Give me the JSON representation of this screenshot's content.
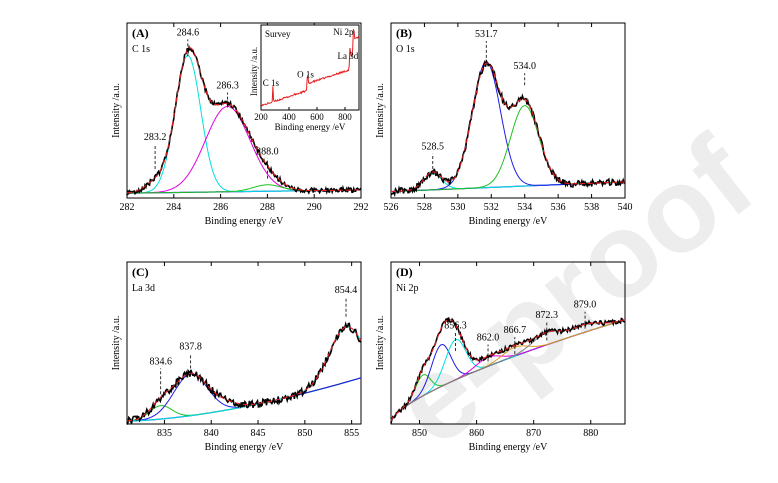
{
  "watermark": "e-proof",
  "chart_data": [
    {
      "id": "A",
      "type": "line",
      "panel_label": "(A)",
      "element_label": "C 1s",
      "xlabel": "Binding energy /eV",
      "ylabel": "Intensity /a.u.",
      "xlim": [
        282,
        292
      ],
      "xticks": [
        282,
        284,
        286,
        288,
        290,
        292
      ],
      "xreverse": false,
      "ylim": [
        0,
        1
      ],
      "peaks": [
        {
          "label": "283.2",
          "x": 283.2,
          "y": 0.18,
          "ly": 0.36
        },
        {
          "label": "284.6",
          "x": 284.6,
          "y": 0.88,
          "ly": 1.01
        },
        {
          "label": "286.3",
          "x": 286.3,
          "y": 0.58,
          "ly": 0.68
        },
        {
          "label": "288.0",
          "x": 288.0,
          "y": 0.12,
          "ly": 0.27
        }
      ],
      "background": [
        [
          282,
          0.03
        ],
        [
          292,
          0.05
        ]
      ],
      "components": [
        {
          "color": "#e61e1e",
          "peaks": []
        },
        {
          "color": "#00e0e0",
          "peaks": [
            [
              284.6,
              0.85,
              0.55
            ]
          ]
        },
        {
          "color": "#e000e0",
          "peaks": [
            [
              286.3,
              0.53,
              0.95
            ]
          ]
        },
        {
          "color": "#20c020",
          "peaks": [
            [
              288.0,
              0.04,
              0.6
            ]
          ]
        }
      ],
      "envelope_peaks": [
        [
          283.2,
          0.06,
          0.45
        ],
        [
          284.6,
          0.78,
          0.55
        ],
        [
          286.3,
          0.54,
          0.95
        ],
        [
          288.0,
          0.05,
          0.6
        ]
      ],
      "noise": 0.015,
      "inset": {
        "title": "Survey",
        "xlabel": "Binding energy /eV",
        "ylabel": "Intensity /a.u.",
        "xlim": [
          200,
          900
        ],
        "xticks": [
          200,
          400,
          600,
          800
        ],
        "labels": [
          {
            "label": "C 1s",
            "x": 285,
            "y": 0.28
          },
          {
            "label": "O 1s",
            "x": 532,
            "y": 0.38
          },
          {
            "label": "La 3d",
            "x": 835,
            "y": 0.6
          },
          {
            "label": "Ni 2p",
            "x": 860,
            "y": 0.88
          }
        ]
      }
    },
    {
      "id": "B",
      "type": "line",
      "panel_label": "(B)",
      "element_label": "O 1s",
      "xlabel": "Binding energy /eV",
      "ylabel": "Intensity /a.u.",
      "xlim": [
        526,
        540
      ],
      "xticks": [
        526,
        528,
        530,
        532,
        534,
        536,
        538,
        540
      ],
      "xreverse": false,
      "ylim": [
        0,
        1
      ],
      "peaks": [
        {
          "label": "528.5",
          "x": 528.5,
          "y": 0.18,
          "ly": 0.3
        },
        {
          "label": "531.7",
          "x": 531.7,
          "y": 0.87,
          "ly": 1.0
        },
        {
          "label": "534.0",
          "x": 534.0,
          "y": 0.7,
          "ly": 0.8
        }
      ],
      "background": [
        [
          526,
          0.04
        ],
        [
          540,
          0.1
        ]
      ],
      "components": [
        {
          "color": "#00e0e0",
          "peaks": [
            [
              528.5,
              0.1,
              0.55
            ]
          ]
        },
        {
          "color": "#1e1ee6",
          "peaks": [
            [
              531.7,
              0.78,
              0.85
            ]
          ]
        },
        {
          "color": "#20c020",
          "peaks": [
            [
              534.0,
              0.5,
              0.85
            ]
          ]
        }
      ],
      "envelope_peaks": [
        [
          528.5,
          0.11,
          0.55
        ],
        [
          531.7,
          0.76,
          0.85
        ],
        [
          534.0,
          0.52,
          0.85
        ]
      ],
      "noise": 0.02
    },
    {
      "id": "C",
      "type": "line",
      "panel_label": "(C)",
      "element_label": "La 3d",
      "xlabel": "Binding energy /eV",
      "ylabel": "Intensity /a.u.",
      "xlim": [
        831,
        856
      ],
      "xticks": [
        835,
        840,
        845,
        850,
        855
      ],
      "xreverse": false,
      "ylim": [
        0,
        1
      ],
      "peaks": [
        {
          "label": "834.6",
          "x": 834.6,
          "y": 0.2,
          "ly": 0.4
        },
        {
          "label": "837.8",
          "x": 837.8,
          "y": 0.34,
          "ly": 0.5
        },
        {
          "label": "854.4",
          "x": 854.4,
          "y": 0.72,
          "ly": 0.88
        }
      ],
      "background": [
        [
          831,
          0.02
        ],
        [
          856,
          0.31
        ]
      ],
      "bg_curve": 1.6,
      "components": [
        {
          "color": "#20c020",
          "peaks": [
            [
              834.6,
              0.09,
              1.2
            ]
          ]
        },
        {
          "color": "#1e1ee6",
          "peaks": [
            [
              837.8,
              0.28,
              1.8
            ]
          ]
        },
        {
          "color": "#00e0e0",
          "peaks": [
            [
              854.4,
              0.37,
              1.8
            ]
          ]
        }
      ],
      "envelope_peaks": [
        [
          834.6,
          0.09,
          1.2
        ],
        [
          837.8,
          0.28,
          1.8
        ],
        [
          841.5,
          0.04,
          1.4
        ],
        [
          854.4,
          0.37,
          1.8
        ]
      ],
      "noise": 0.025
    },
    {
      "id": "D",
      "type": "line",
      "panel_label": "(D)",
      "element_label": "Ni 2p",
      "xlabel": "Binding energy /eV",
      "ylabel": "Intensity /a.u.",
      "xlim": [
        845,
        886
      ],
      "xticks": [
        850,
        860,
        870,
        880
      ],
      "xreverse": false,
      "ylim": [
        0,
        1
      ],
      "peaks": [
        {
          "label": "856.3",
          "x": 856.3,
          "y": 0.49,
          "ly": 0.64
        },
        {
          "label": "862.0",
          "x": 862.0,
          "y": 0.42,
          "ly": 0.56
        },
        {
          "label": "866.7",
          "x": 866.7,
          "y": 0.47,
          "ly": 0.61
        },
        {
          "label": "872.3",
          "x": 872.3,
          "y": 0.56,
          "ly": 0.71
        },
        {
          "label": "879.0",
          "x": 879.0,
          "y": 0.64,
          "ly": 0.78
        }
      ],
      "background": [
        [
          845,
          0.02
        ],
        [
          886,
          0.7
        ]
      ],
      "bg_curve": 0.7,
      "components": [
        {
          "color": "#20c020",
          "peaks": [
            [
              850.6,
              0.14,
              1.3
            ]
          ]
        },
        {
          "color": "#1e1ee6",
          "peaks": [
            [
              853.8,
              0.28,
              1.7
            ]
          ]
        },
        {
          "color": "#00e0e0",
          "peaks": [
            [
              856.3,
              0.27,
              1.8
            ]
          ]
        },
        {
          "color": "#e000e0",
          "peaks": [
            [
              862.0,
              0.06,
              2.2
            ]
          ]
        },
        {
          "color": "#d9a020",
          "peaks": [
            [
              866.7,
              0.06,
              2.2
            ]
          ]
        },
        {
          "color": "#808080",
          "peaks": [
            [
              872.3,
              0.08,
              2.5
            ],
            [
              879.0,
              0.05,
              2.5
            ]
          ]
        }
      ],
      "envelope_peaks": [
        [
          850.6,
          0.14,
          1.3
        ],
        [
          853.8,
          0.28,
          1.7
        ],
        [
          856.3,
          0.27,
          1.8
        ],
        [
          862.0,
          0.06,
          2.2
        ],
        [
          866.7,
          0.06,
          2.2
        ],
        [
          872.3,
          0.08,
          2.5
        ],
        [
          879.0,
          0.05,
          2.5
        ]
      ],
      "noise": 0.015
    }
  ]
}
